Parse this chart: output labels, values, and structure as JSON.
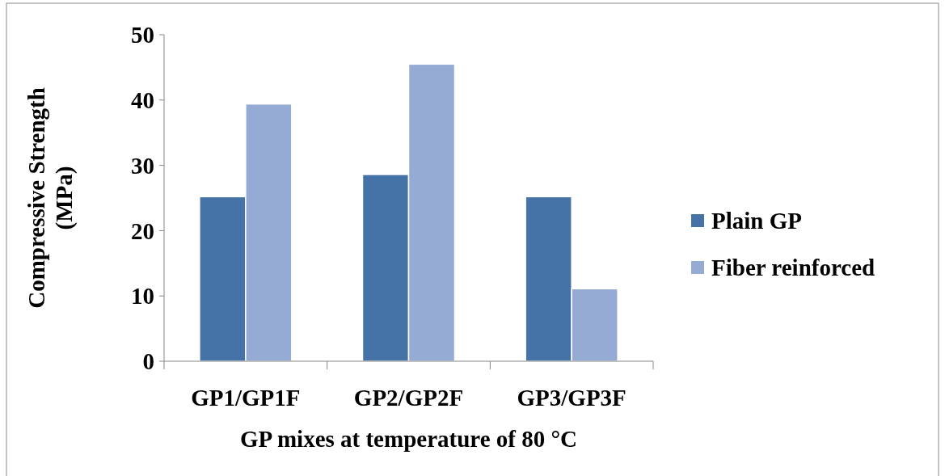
{
  "chart_data": {
    "type": "bar",
    "xlabel": "GP mixes at temperature of 80 °C",
    "ylabel": "Compressive Strength (MPa)",
    "categories": [
      "GP1/GP1F",
      "GP2/GP2F",
      "GP3/GP3F"
    ],
    "series": [
      {
        "name": "Plain GP",
        "color": "#4572a7",
        "values": [
          25.2,
          28.6,
          25.2
        ]
      },
      {
        "name": "Fiber reinforced",
        "color": "#95abd3",
        "values": [
          39.4,
          45.5,
          11.1
        ]
      }
    ],
    "ylim": [
      0,
      50
    ],
    "yticks": [
      0,
      10,
      20,
      30,
      40,
      50
    ],
    "grid": false,
    "legend": "right"
  }
}
